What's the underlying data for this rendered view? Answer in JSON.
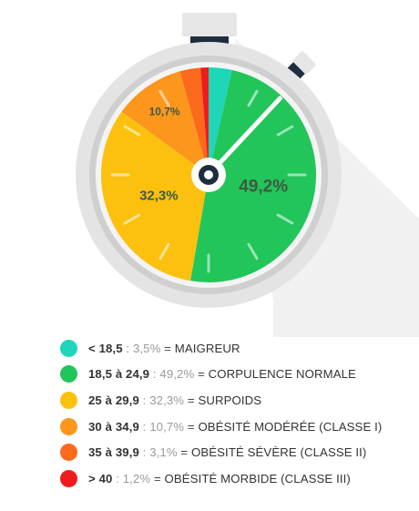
{
  "chart_data": {
    "type": "pie",
    "style": "stopwatch",
    "slices": [
      {
        "range": "< 18,5",
        "value": 3.5,
        "value_text": "3,5%",
        "label": "MAIGREUR",
        "color": "#1fd6b8",
        "show_value_on_chart": false
      },
      {
        "range": "18,5 à 24,9",
        "value": 49.2,
        "value_text": "49,2%",
        "label": "CORPULENCE NORMALE",
        "color": "#22c55a",
        "show_value_on_chart": true
      },
      {
        "range": "25 à 29,9",
        "value": 32.3,
        "value_text": "32,3%",
        "label": "SURPOIDS",
        "color": "#fcc10e",
        "show_value_on_chart": true
      },
      {
        "range": "30 à 34,9",
        "value": 10.7,
        "value_text": "10,7%",
        "label": "OBÉSITÉ MODÉRÉE (CLASSE I)",
        "color": "#fd961c",
        "show_value_on_chart": true
      },
      {
        "range": "35 à 39,9",
        "value": 3.1,
        "value_text": "3,1%",
        "label": "OBÉSITÉ SÉVÈRE (CLASSE II)",
        "color": "#fb6a1c",
        "show_value_on_chart": false
      },
      {
        "range": "> 40",
        "value": 1.2,
        "value_text": "1,2%",
        "label": "OBÉSITÉ MORBIDE (CLASSE III)",
        "color": "#ee1c1c",
        "show_value_on_chart": false
      }
    ],
    "legend_position": "bottom",
    "separator": ":",
    "equals": "="
  },
  "colors": {
    "dial_rim": "#e4e4e4",
    "dial_rim_inner": "#cfcfcf",
    "crown_body": "#e6e6e6",
    "crown_band": "#1e2d3f",
    "shadow": "#f1f1f1",
    "ticks": "#ffffff",
    "hand": "#ffffff",
    "hub": "#1e2d3f",
    "value_text": "#3d5a41"
  }
}
